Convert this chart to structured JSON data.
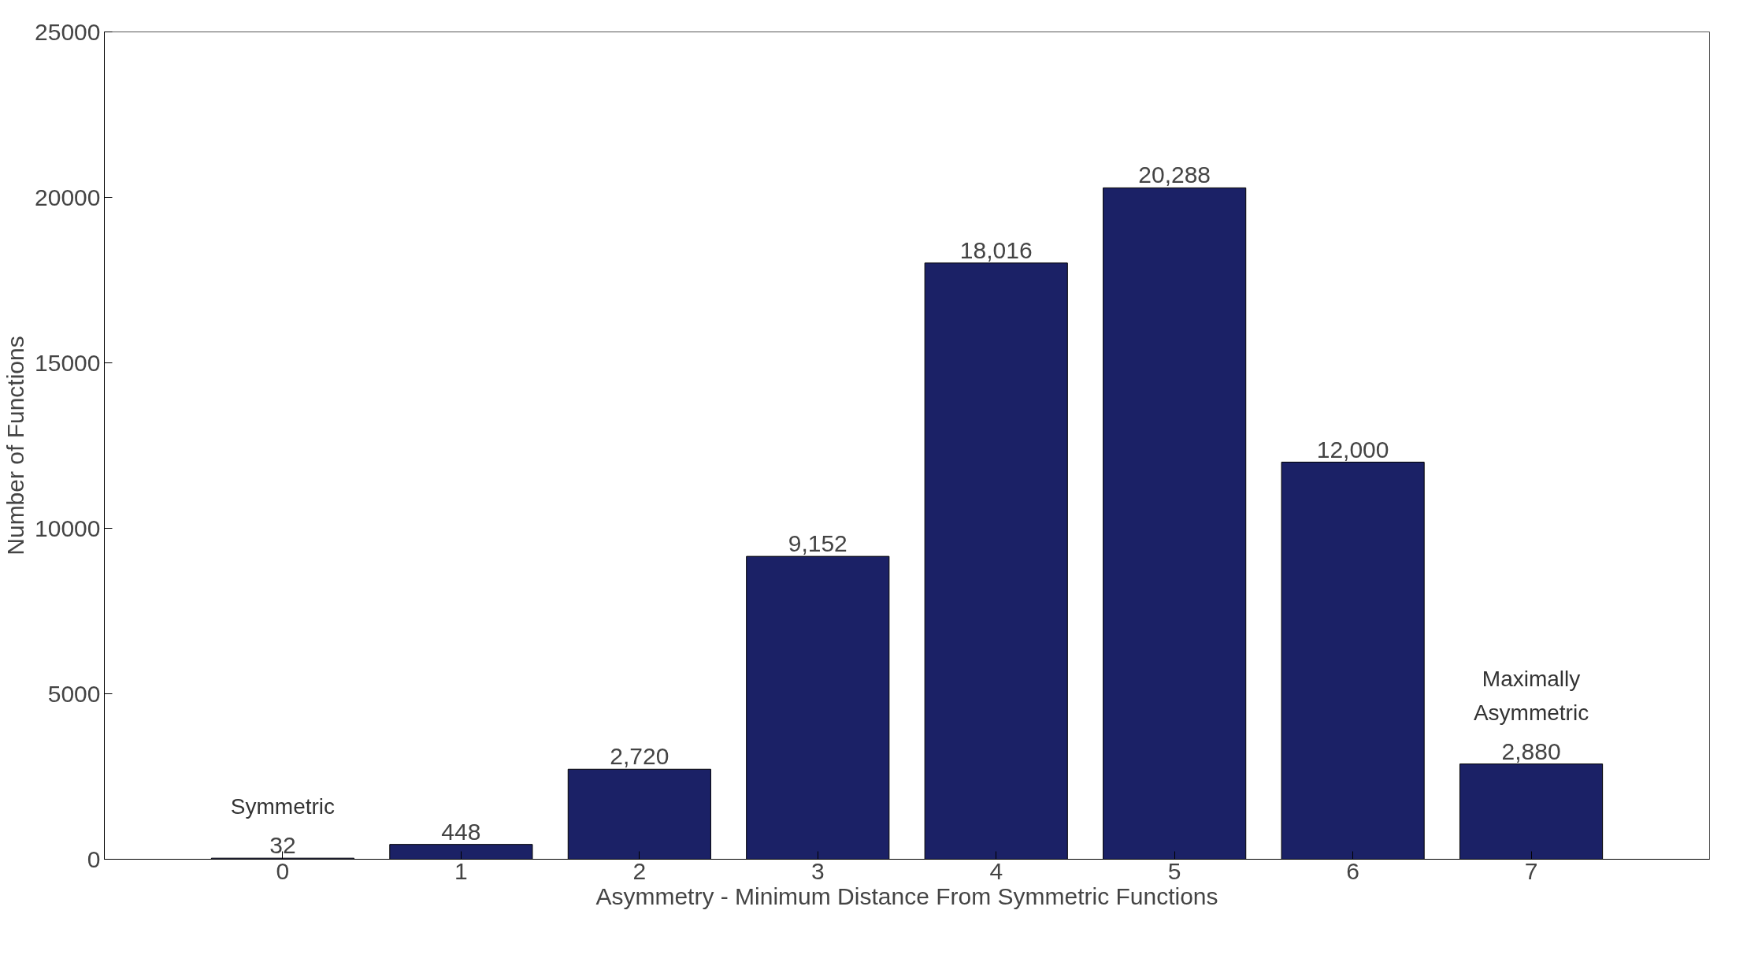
{
  "chart_data": {
    "type": "bar",
    "xlabel": "Asymmetry - Minimum Distance From Symmetric Functions",
    "ylabel": "Number of Functions",
    "x": [
      0,
      1,
      2,
      3,
      4,
      5,
      6,
      7
    ],
    "values": [
      32,
      448,
      2720,
      9152,
      18016,
      20288,
      12000,
      2880
    ],
    "value_labels": [
      "32",
      "448",
      "2,720",
      "9,152",
      "18,016",
      "20,288",
      "12,000",
      "2,880"
    ],
    "color": "#1b2166",
    "xlim": [
      -1,
      8
    ],
    "xticks": [
      0,
      1,
      2,
      3,
      4,
      5,
      6,
      7
    ],
    "ylim": [
      0,
      25000
    ],
    "yticks": [
      0,
      5000,
      10000,
      15000,
      20000,
      25000
    ],
    "annotations": [
      {
        "text": "Symmetric",
        "x": 0,
        "y": 32
      },
      {
        "text": "Maximally\nAsymmetric",
        "x": 7,
        "y": 2880
      }
    ],
    "grid": false
  }
}
